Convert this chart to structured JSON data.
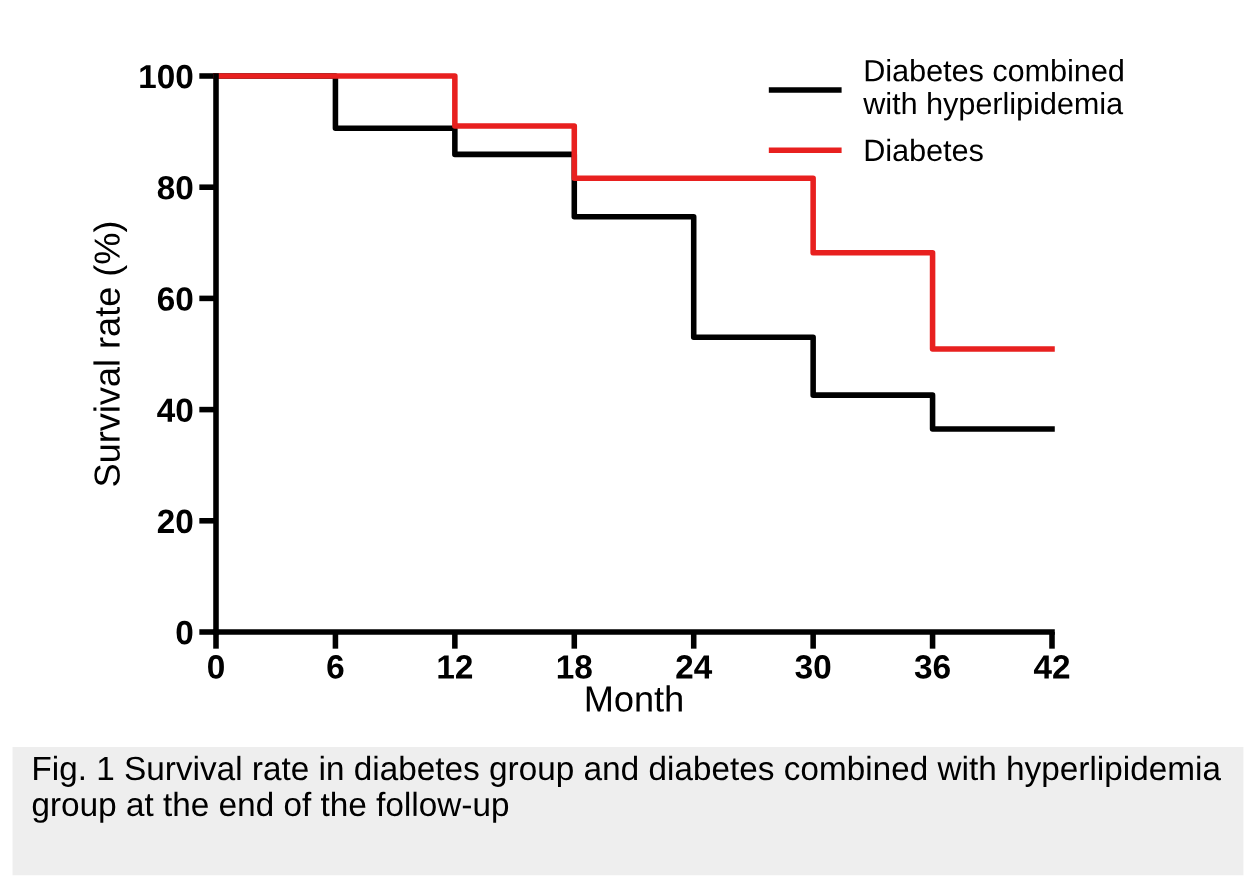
{
  "chart_data": {
    "type": "step",
    "xlabel": "Month",
    "ylabel": "Survival rate (%)",
    "xlim": [
      0,
      42
    ],
    "xticks": [
      0,
      6,
      12,
      18,
      24,
      30,
      36,
      42
    ],
    "ylim": [
      0,
      100
    ],
    "yticks": [
      0,
      20,
      40,
      60,
      80,
      100
    ],
    "series": [
      {
        "name": "Diabetes combined\nwith hyperlipidemia",
        "color": "#000000",
        "x": [
          0,
          6,
          12,
          18,
          24,
          30,
          36,
          42
        ],
        "values": [
          100,
          90.6,
          85.9,
          74.7,
          53,
          42.6,
          36.5,
          36.5
        ]
      },
      {
        "name": "Diabetes",
        "color": "#e8201f",
        "x": [
          0,
          12,
          18,
          30,
          36,
          42
        ],
        "values": [
          100,
          91,
          81.6,
          68.2,
          50.9,
          50.9
        ]
      }
    ],
    "legend": "top right",
    "grid": false,
    "marker": "none",
    "line_style": "solid",
    "annotations": [
      "Fig. 1 Survival rate in diabetes group and diabetes combined with hyperlipidemia group at the end of the follow-up"
    ]
  }
}
